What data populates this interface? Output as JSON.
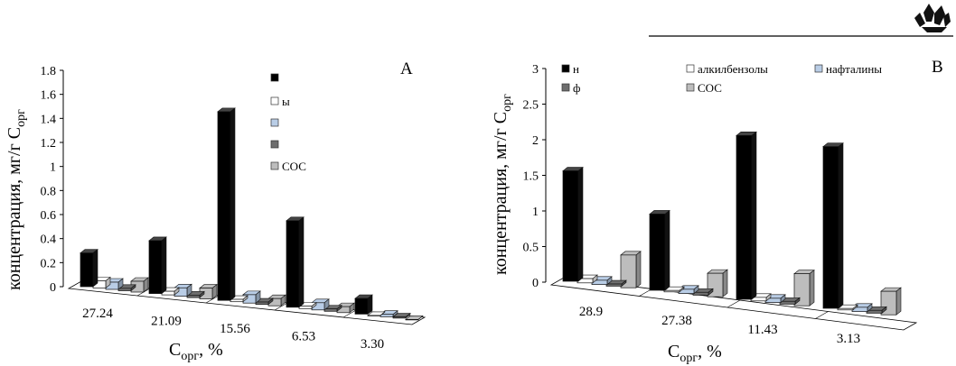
{
  "colors": {
    "black_series": "#000000",
    "alkylbenzene": "#ffffff",
    "naphthalene": "#b9cde6",
    "phenanthrene": "#6e6e6e",
    "soc": "#bdbdbd"
  },
  "logo_icon": "crystal-logo-icon",
  "chart_data": [
    {
      "type": "bar",
      "panel_label": "A",
      "categories": [
        "27.24",
        "21.09",
        "15.56",
        "6.53",
        "3.30"
      ],
      "xlabel_main": "C",
      "xlabel_sub": "орг",
      "xlabel_tail": ", %",
      "ylabel_main": "концентрация, мг/г C",
      "ylabel_sub": "орг",
      "yticks": [
        "0",
        "0.2",
        "0.4",
        "0.6",
        "0.8",
        "1",
        "1.2",
        "1.4",
        "1.6",
        "1.8"
      ],
      "ylim": [
        0,
        1.8
      ],
      "legend_position": "top-right",
      "legend_text": [
        "",
        "ы",
        "",
        "",
        "СОС"
      ],
      "series": [
        {
          "values": [
            0.28,
            0.44,
            1.57,
            0.72,
            0.13
          ]
        },
        {
          "values": [
            0.06,
            0.03,
            0.02,
            0.02,
            0.0
          ]
        },
        {
          "values": [
            0.06,
            0.07,
            0.07,
            0.06,
            0.02
          ]
        },
        {
          "values": [
            0.02,
            0.02,
            0.02,
            0.02,
            0.01
          ]
        },
        {
          "name": "СОС",
          "values": [
            0.09,
            0.09,
            0.06,
            0.05,
            0.0
          ]
        }
      ]
    },
    {
      "type": "bar",
      "panel_label": "B",
      "categories": [
        "28.9",
        "27.38",
        "11.43",
        "3.13"
      ],
      "xlabel_main": "C",
      "xlabel_sub": "орг",
      "xlabel_tail": ", %",
      "ylabel_main": "концентрация, мг/г C",
      "ylabel_sub": "орг",
      "yticks": [
        "0",
        "0.5",
        "1",
        "1.5",
        "2",
        "2.5",
        "3"
      ],
      "ylim": [
        0,
        3
      ],
      "legend_position": "top",
      "legend_text": [
        "н",
        "алкилбензолы",
        "нафталины",
        "ф",
        "СОС"
      ],
      "series": [
        {
          "values": [
            1.55,
            1.07,
            2.3,
            2.27
          ]
        },
        {
          "name": "алкилбензолы",
          "values": [
            0.06,
            0.02,
            0.05,
            0.02
          ]
        },
        {
          "name": "нафталины",
          "values": [
            0.06,
            0.06,
            0.06,
            0.06
          ]
        },
        {
          "values": [
            0.03,
            0.04,
            0.04,
            0.04
          ]
        },
        {
          "name": "СОС",
          "values": [
            0.46,
            0.33,
            0.45,
            0.33
          ]
        }
      ]
    }
  ]
}
